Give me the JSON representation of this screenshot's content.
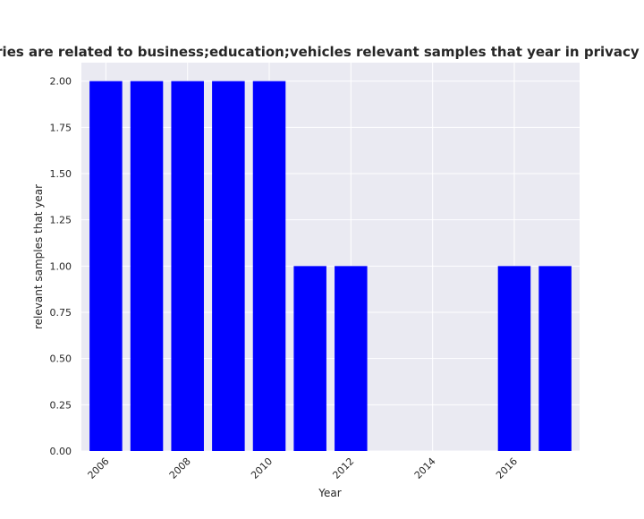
{
  "chart_data": {
    "type": "bar",
    "title": "Categories are related to business;education;vehicles relevant samples that year in privacy policies",
    "xlabel": "Year",
    "ylabel": "relevant samples that year",
    "x": [
      2006,
      2007,
      2008,
      2009,
      2010,
      2011,
      2012,
      2016,
      2017
    ],
    "values": [
      2,
      2,
      2,
      2,
      2,
      1,
      1,
      1,
      1
    ],
    "xticks": [
      "2006",
      "2008",
      "2010",
      "2012",
      "2014",
      "2016"
    ],
    "yticks": [
      "0.00",
      "0.25",
      "0.50",
      "0.75",
      "1.00",
      "1.25",
      "1.50",
      "1.75",
      "2.00"
    ],
    "xlim": [
      2005.4,
      2017.6
    ],
    "ylim": [
      0,
      2.1
    ],
    "grid": true,
    "colors": {
      "bar": "#0000ff",
      "plot_background": "#eaeaf2",
      "grid": "#ffffff",
      "text": "#262626"
    }
  }
}
